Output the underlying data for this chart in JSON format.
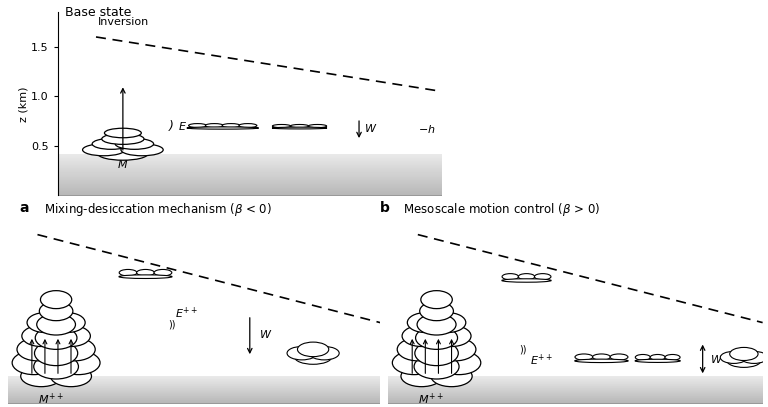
{
  "bg_color": "#ffffff",
  "title_top": "Base state",
  "label_inversion": "Inversion",
  "label_z": "z (km)",
  "yticks": [
    0.5,
    1.0,
    1.5
  ],
  "surface_color": "#cccccc",
  "surface_dark": "#aaaaaa",
  "dashed_color": "#333333"
}
